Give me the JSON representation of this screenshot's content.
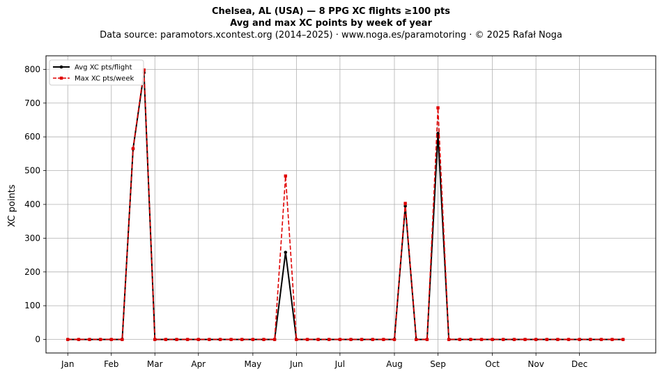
{
  "chart_data": {
    "type": "line",
    "title": "Chelsea, AL (USA)  —  8 PPG XC flights ≥100 pts",
    "subtitle": "Avg and max XC points by week of year",
    "source_note": "Data source: paramotors.xcontest.org (2014–2025)  ·  www.noga.es/paramotoring  ·  © 2025 Rafał Noga",
    "xlabel": "",
    "ylabel": "XC points",
    "xlim": [
      -2,
      54
    ],
    "ylim": [
      -40,
      840
    ],
    "grid": true,
    "legend_position": "top-left",
    "x_ticks": [
      {
        "label": "Jan",
        "week": 0
      },
      {
        "label": "Feb",
        "week": 4
      },
      {
        "label": "Mar",
        "week": 8
      },
      {
        "label": "Apr",
        "week": 12
      },
      {
        "label": "May",
        "week": 17
      },
      {
        "label": "Jun",
        "week": 21
      },
      {
        "label": "Jul",
        "week": 25
      },
      {
        "label": "Aug",
        "week": 30
      },
      {
        "label": "Sep",
        "week": 34
      },
      {
        "label": "Oct",
        "week": 39
      },
      {
        "label": "Nov",
        "week": 43
      },
      {
        "label": "Dec",
        "week": 47
      }
    ],
    "y_ticks": [
      0,
      100,
      200,
      300,
      400,
      500,
      600,
      700,
      800
    ],
    "x": [
      0,
      1,
      2,
      3,
      4,
      5,
      6,
      7,
      8,
      9,
      10,
      11,
      12,
      13,
      14,
      15,
      16,
      17,
      18,
      19,
      20,
      21,
      22,
      23,
      24,
      25,
      26,
      27,
      28,
      29,
      30,
      31,
      32,
      33,
      34,
      35,
      36,
      37,
      38,
      39,
      40,
      41,
      42,
      43,
      44,
      45,
      46,
      47,
      48,
      49,
      50,
      51
    ],
    "series": [
      {
        "name": "Avg XC pts/flight",
        "color": "#000000",
        "style": "solid",
        "marker": "circle",
        "values": [
          0,
          0,
          0,
          0,
          0,
          0,
          565,
          790,
          0,
          0,
          0,
          0,
          0,
          0,
          0,
          0,
          0,
          0,
          0,
          0,
          258,
          0,
          0,
          0,
          0,
          0,
          0,
          0,
          0,
          0,
          0,
          395,
          0,
          0,
          610,
          0,
          0,
          0,
          0,
          0,
          0,
          0,
          0,
          0,
          0,
          0,
          0,
          0,
          0,
          0,
          0,
          0
        ]
      },
      {
        "name": "Max XC pts/week",
        "color": "#e00000",
        "style": "dashed",
        "marker": "square",
        "values": [
          0,
          0,
          0,
          0,
          0,
          0,
          565,
          798,
          0,
          0,
          0,
          0,
          0,
          0,
          0,
          0,
          0,
          0,
          0,
          0,
          484,
          0,
          0,
          0,
          0,
          0,
          0,
          0,
          0,
          0,
          0,
          403,
          0,
          0,
          686,
          0,
          0,
          0,
          0,
          0,
          0,
          0,
          0,
          0,
          0,
          0,
          0,
          0,
          0,
          0,
          0,
          0
        ]
      }
    ]
  }
}
